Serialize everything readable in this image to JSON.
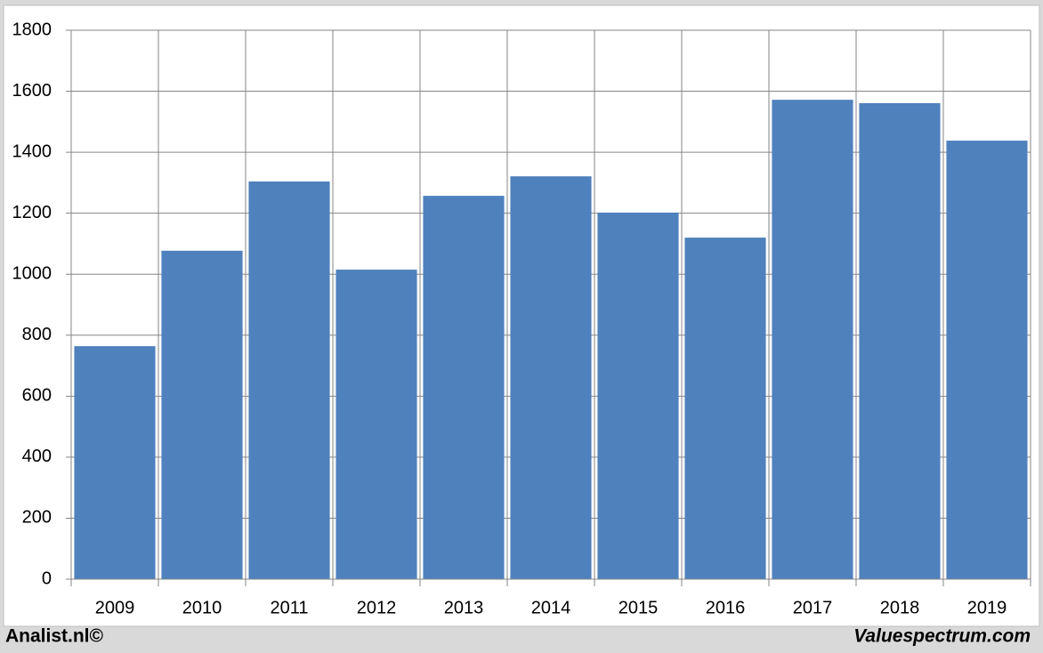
{
  "chart_data": {
    "type": "bar",
    "categories": [
      "2009",
      "2010",
      "2011",
      "2012",
      "2013",
      "2014",
      "2015",
      "2016",
      "2017",
      "2018",
      "2019"
    ],
    "values": [
      764,
      1077,
      1304,
      1015,
      1257,
      1321,
      1202,
      1120,
      1572,
      1561,
      1438
    ],
    "color": "#4f81bd",
    "ylim": [
      0,
      1800
    ],
    "yticks": [
      0,
      200,
      400,
      600,
      800,
      1000,
      1200,
      1400,
      1600,
      1800
    ],
    "grid": true,
    "footer_left": "Analist.nl©",
    "footer_right": "Valuespectrum.com"
  }
}
